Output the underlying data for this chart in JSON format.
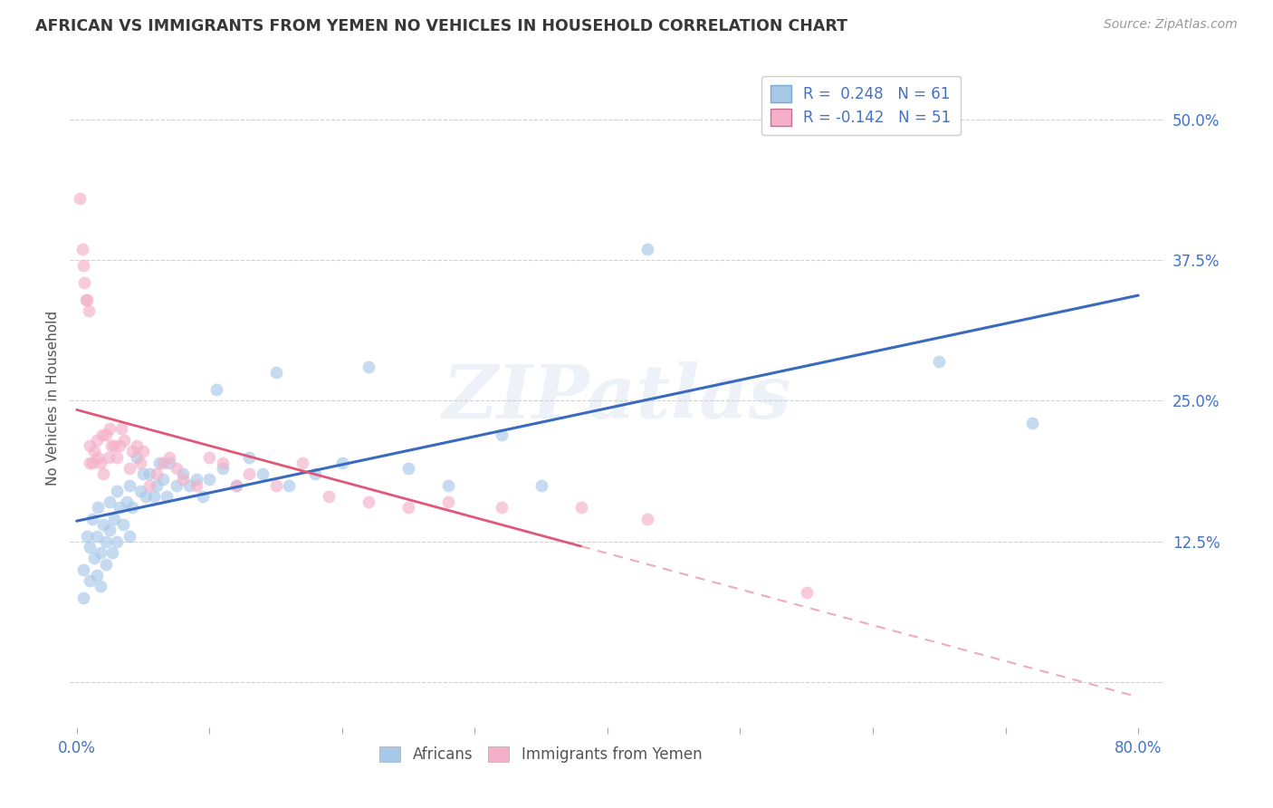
{
  "title": "AFRICAN VS IMMIGRANTS FROM YEMEN NO VEHICLES IN HOUSEHOLD CORRELATION CHART",
  "source": "Source: ZipAtlas.com",
  "ylabel": "No Vehicles in Household",
  "ytick_labels": [
    "",
    "12.5%",
    "25.0%",
    "37.5%",
    "50.0%"
  ],
  "ytick_vals": [
    0.0,
    0.125,
    0.25,
    0.375,
    0.5
  ],
  "xtick_vals": [
    0.0,
    0.1,
    0.2,
    0.3,
    0.4,
    0.5,
    0.6,
    0.7,
    0.8
  ],
  "xlim": [
    -0.005,
    0.82
  ],
  "ylim": [
    -0.04,
    0.545
  ],
  "watermark": "ZIPatlas",
  "legend_r1": "R =  0.248   N = 61",
  "legend_r2": "R = -0.142   N = 51",
  "color_african": "#a8c8e8",
  "color_african_line": "#3a6abf",
  "color_yemen": "#f4b0c8",
  "color_yemen_line": "#e05878",
  "background_color": "#ffffff",
  "grid_color": "#cccccc",
  "title_color": "#383838",
  "tick_color": "#4472c4",
  "scatter_alpha": 0.65,
  "scatter_size": 100,
  "africans_x": [
    0.005,
    0.005,
    0.008,
    0.01,
    0.01,
    0.012,
    0.013,
    0.015,
    0.015,
    0.016,
    0.018,
    0.018,
    0.02,
    0.022,
    0.022,
    0.025,
    0.025,
    0.027,
    0.028,
    0.03,
    0.03,
    0.032,
    0.035,
    0.038,
    0.04,
    0.04,
    0.042,
    0.045,
    0.048,
    0.05,
    0.052,
    0.055,
    0.058,
    0.06,
    0.062,
    0.065,
    0.068,
    0.07,
    0.075,
    0.08,
    0.085,
    0.09,
    0.095,
    0.1,
    0.105,
    0.11,
    0.12,
    0.13,
    0.14,
    0.15,
    0.16,
    0.18,
    0.2,
    0.22,
    0.25,
    0.28,
    0.32,
    0.35,
    0.43,
    0.65,
    0.72
  ],
  "africans_y": [
    0.1,
    0.075,
    0.13,
    0.09,
    0.12,
    0.145,
    0.11,
    0.095,
    0.13,
    0.155,
    0.085,
    0.115,
    0.14,
    0.105,
    0.125,
    0.16,
    0.135,
    0.115,
    0.145,
    0.17,
    0.125,
    0.155,
    0.14,
    0.16,
    0.175,
    0.13,
    0.155,
    0.2,
    0.17,
    0.185,
    0.165,
    0.185,
    0.165,
    0.175,
    0.195,
    0.18,
    0.165,
    0.195,
    0.175,
    0.185,
    0.175,
    0.18,
    0.165,
    0.18,
    0.26,
    0.19,
    0.175,
    0.2,
    0.185,
    0.275,
    0.175,
    0.185,
    0.195,
    0.28,
    0.19,
    0.175,
    0.22,
    0.175,
    0.385,
    0.285,
    0.23
  ],
  "yemen_x": [
    0.002,
    0.004,
    0.005,
    0.006,
    0.007,
    0.008,
    0.009,
    0.01,
    0.01,
    0.012,
    0.013,
    0.015,
    0.016,
    0.018,
    0.019,
    0.02,
    0.022,
    0.024,
    0.025,
    0.026,
    0.028,
    0.03,
    0.032,
    0.034,
    0.036,
    0.04,
    0.042,
    0.045,
    0.048,
    0.05,
    0.055,
    0.06,
    0.065,
    0.07,
    0.075,
    0.08,
    0.09,
    0.1,
    0.11,
    0.12,
    0.13,
    0.15,
    0.17,
    0.19,
    0.22,
    0.25,
    0.28,
    0.32,
    0.38,
    0.43,
    0.55
  ],
  "yemen_y": [
    0.43,
    0.385,
    0.37,
    0.355,
    0.34,
    0.34,
    0.33,
    0.21,
    0.195,
    0.195,
    0.205,
    0.215,
    0.2,
    0.195,
    0.22,
    0.185,
    0.22,
    0.2,
    0.225,
    0.21,
    0.21,
    0.2,
    0.21,
    0.225,
    0.215,
    0.19,
    0.205,
    0.21,
    0.195,
    0.205,
    0.175,
    0.185,
    0.195,
    0.2,
    0.19,
    0.18,
    0.175,
    0.2,
    0.195,
    0.175,
    0.185,
    0.175,
    0.195,
    0.165,
    0.16,
    0.155,
    0.16,
    0.155,
    0.155,
    0.145,
    0.08
  ]
}
